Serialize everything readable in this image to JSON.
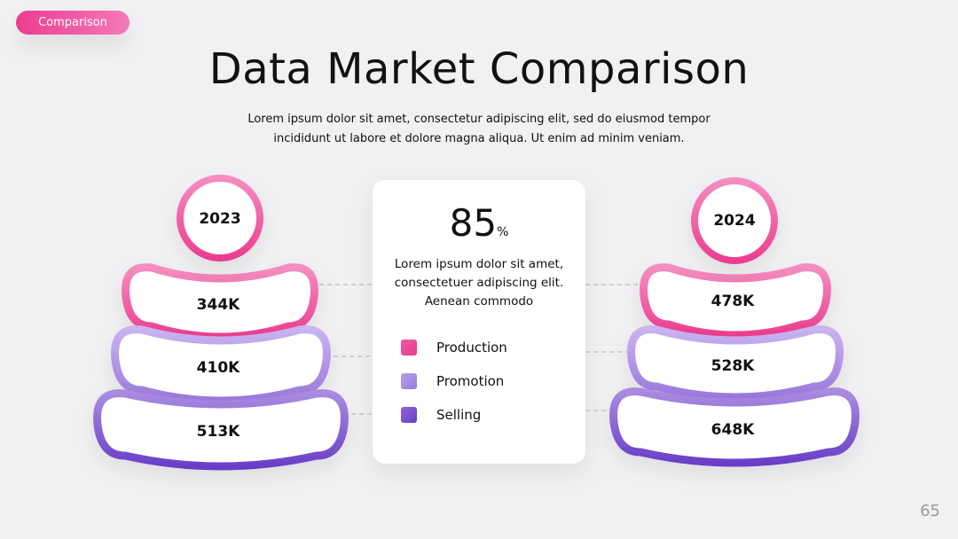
{
  "badge": "Comparison",
  "header": {
    "title": "Data Market Comparison",
    "subtitle": "Lorem ipsum dolor sit amet, consectetur adipiscing elit, sed do eiusmod tempor incididunt ut labore et dolore magna aliqua. Ut enim ad minim veniam."
  },
  "left": {
    "year": "2023",
    "items": [
      "344K",
      "410K",
      "513K"
    ]
  },
  "center": {
    "value": "85",
    "unit": "%",
    "text": "Lorem ipsum dolor sit amet, consectetuer adipiscing elit. Aenean commodo",
    "legend": [
      "Production",
      "Promotion",
      "Selling"
    ]
  },
  "right": {
    "year": "2024",
    "items": [
      "478K",
      "528K",
      "648K"
    ]
  },
  "page_number": "65"
}
